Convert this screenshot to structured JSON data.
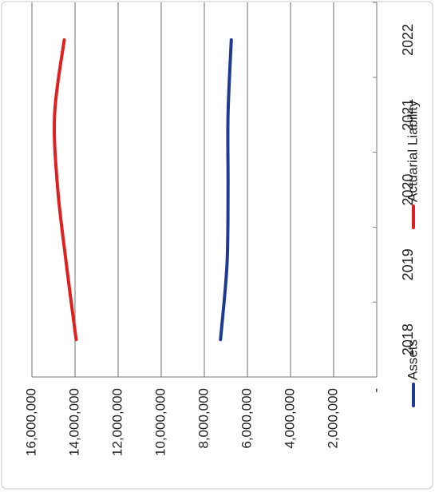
{
  "chart_data": {
    "type": "line",
    "orientation": "rotated-90-clockwise",
    "categories": [
      "2018",
      "2019",
      "2020",
      "2021",
      "2022"
    ],
    "series": [
      {
        "name": "Assets",
        "color": "#1f3a93",
        "values": [
          7250000,
          6950000,
          6900000,
          6900000,
          6750000
        ]
      },
      {
        "name": "Actuarial Liability",
        "color": "#e02020",
        "values": [
          13950000,
          14400000,
          14800000,
          14950000,
          14500000
        ]
      }
    ],
    "y_tick_labels": [
      "-",
      "2,000,000",
      "4,000,000",
      "6,000,000",
      "8,000,000",
      "10,000,000",
      "12,000,000",
      "14,000,000",
      "16,000,000"
    ],
    "ylim": [
      0,
      16000000
    ],
    "y_tick_step": 2000000,
    "grid": true,
    "legend_position": "bottom"
  }
}
